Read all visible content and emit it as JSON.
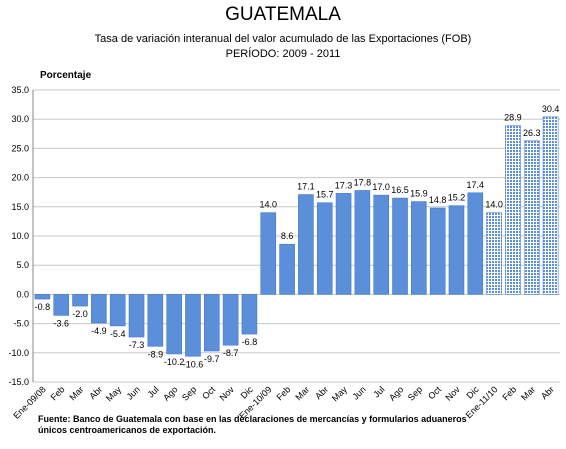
{
  "chart_data": {
    "type": "bar",
    "title": "GUATEMALA",
    "subtitle": [
      "Tasa de variación interanual  del valor acumulado de las Exportaciones  (FOB)",
      "PERÍODO:  2009  -  2011"
    ],
    "y_label": "Porcentaje",
    "categories": [
      "Ene-09/08",
      "Feb",
      "Mar",
      "Abr",
      "May",
      "Jun",
      "Jul",
      "Ago",
      "Sep",
      "Oct",
      "Nov",
      "Dic",
      "Ene-10/09",
      "Feb",
      "Mar",
      "Abr",
      "May",
      "Jun",
      "Jul",
      "Ago",
      "Sep",
      "Oct",
      "Nov",
      "Dic",
      "Ene-11/10",
      "Feb",
      "Mar",
      "Abr"
    ],
    "values": [
      -0.8,
      -3.6,
      -2.0,
      -4.9,
      -5.4,
      -7.3,
      -8.9,
      -10.2,
      -10.6,
      -9.7,
      -8.7,
      -6.8,
      14.0,
      8.6,
      17.1,
      15.7,
      17.3,
      17.8,
      17.0,
      16.5,
      15.9,
      14.8,
      15.2,
      17.4,
      14.0,
      28.9,
      26.3,
      30.4
    ],
    "value_labels": [
      "-0.8",
      "-3.6",
      "-2.0",
      "-4.9",
      "-5.4",
      "-7.3",
      "-8.9",
      "-10.2",
      "-10.6",
      "-9.7",
      "-8.7",
      "-6.8",
      "14.0",
      "8.6",
      "17.1",
      "15.7",
      "17.3",
      "17.8",
      "17.0",
      "16.5",
      "15.9",
      "14.8",
      "15.2",
      "17.4",
      "14.0",
      "28.9",
      "26.3",
      "30.4"
    ],
    "hatched": [
      false,
      false,
      false,
      false,
      false,
      false,
      false,
      false,
      false,
      false,
      false,
      false,
      false,
      false,
      false,
      false,
      false,
      false,
      false,
      false,
      false,
      false,
      false,
      false,
      true,
      true,
      true,
      true
    ],
    "color": "#5b8fd9",
    "ylim": [
      -15,
      35
    ],
    "yticks": [
      {
        "value": -15,
        "label": "-15.0"
      },
      {
        "value": -10,
        "label": "-10.0"
      },
      {
        "value": -5,
        "label": "-5.0"
      },
      {
        "value": 0,
        "label": "0.0"
      },
      {
        "value": 5,
        "label": "5.0"
      },
      {
        "value": 10,
        "label": "10.0"
      },
      {
        "value": 15,
        "label": "15.0"
      },
      {
        "value": 20,
        "label": "20.0"
      },
      {
        "value": 25,
        "label": "25.0"
      },
      {
        "value": 30,
        "label": "30.0"
      },
      {
        "value": 35,
        "label": "35.0"
      }
    ],
    "grid": true,
    "source": [
      "Fuente: Banco de Guatemala con base en las declaraciones de mercancías y formularios aduaneros",
      "únicos centroamericanos de exportación."
    ]
  }
}
